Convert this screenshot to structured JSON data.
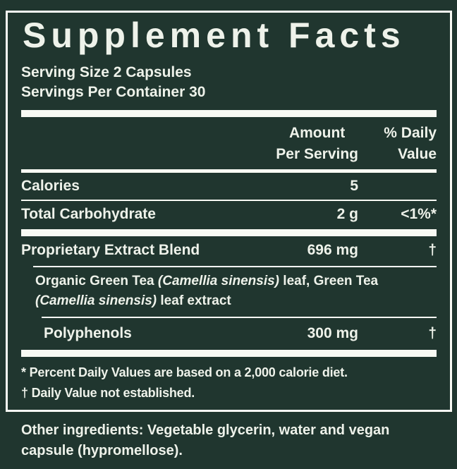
{
  "colors": {
    "background": "#20362f",
    "text": "#eef2ea",
    "rule": "#f8faf4"
  },
  "title": "Supplement Facts",
  "serving_info": {
    "serving_size": "Serving Size 2 Capsules",
    "servings_per_container": "Servings Per Container 30"
  },
  "column_headers": {
    "amount_line1": "Amount",
    "amount_line2": "Per Serving",
    "daily_line1": "% Daily",
    "daily_line2": "Value"
  },
  "rows": [
    {
      "label": "Calories",
      "amount": "5",
      "daily_value": ""
    },
    {
      "label": "Total Carbohydrate",
      "amount": "2 g",
      "daily_value": "<1%*"
    },
    {
      "label": "Proprietary Extract Blend",
      "amount": "696 mg",
      "daily_value": "†"
    },
    {
      "label": "Polyphenols",
      "amount": "300 mg",
      "daily_value": "†"
    }
  ],
  "blend_description": {
    "part1": "Organic Green Tea ",
    "part2": "(Camellia sinensis)",
    "part3": " leaf, Green Tea ",
    "part4": "(Camellia sinensis)",
    "part5": " leaf extract"
  },
  "footnotes": {
    "daily_value_note": "* Percent Daily Values are based on a 2,000 calorie diet.",
    "dagger_note": "† Daily Value not established."
  },
  "other_ingredients": "Other ingredients: Vegetable glycerin, water and vegan capsule (hypromellose)."
}
